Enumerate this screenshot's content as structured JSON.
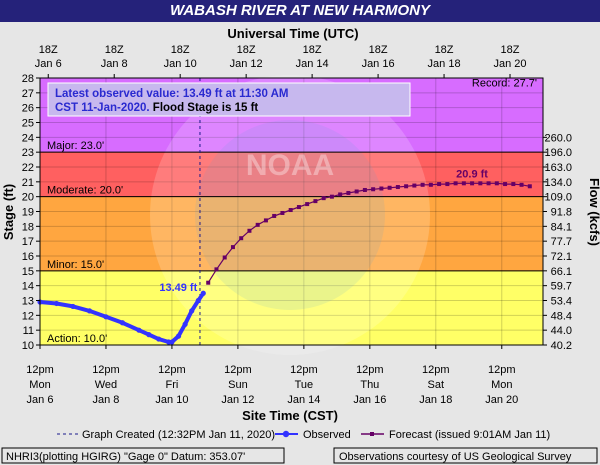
{
  "title": "WABASH RIVER AT NEW HARMONY",
  "top_axis_label": "Universal Time (UTC)",
  "bottom_axis_label": "Site Time (CST)",
  "left_axis_label": "Stage (ft)",
  "right_axis_label": "Flow (kcfs)",
  "top_ticks": [
    {
      "line1": "18Z",
      "line2": "Jan  6"
    },
    {
      "line1": "18Z",
      "line2": "Jan  8"
    },
    {
      "line1": "18Z",
      "line2": "Jan 10"
    },
    {
      "line1": "18Z",
      "line2": "Jan 12"
    },
    {
      "line1": "18Z",
      "line2": "Jan 14"
    },
    {
      "line1": "18Z",
      "line2": "Jan 16"
    },
    {
      "line1": "18Z",
      "line2": "Jan 18"
    },
    {
      "line1": "18Z",
      "line2": "Jan 20"
    }
  ],
  "bottom_ticks": [
    {
      "line1": "12pm",
      "line2": "Mon",
      "line3": "Jan 6"
    },
    {
      "line1": "12pm",
      "line2": "Wed",
      "line3": "Jan 8"
    },
    {
      "line1": "12pm",
      "line2": "Fri",
      "line3": "Jan 10"
    },
    {
      "line1": "12pm",
      "line2": "Sun",
      "line3": "Jan 12"
    },
    {
      "line1": "12pm",
      "line2": "Tue",
      "line3": "Jan 14"
    },
    {
      "line1": "12pm",
      "line2": "Thu",
      "line3": "Jan 16"
    },
    {
      "line1": "12pm",
      "line2": "Sat",
      "line3": "Jan 18"
    },
    {
      "line1": "12pm",
      "line2": "Mon",
      "line3": "Jan 20"
    }
  ],
  "stage_ticks": [
    "10",
    "11",
    "12",
    "13",
    "14",
    "15",
    "16",
    "17",
    "18",
    "19",
    "20",
    "21",
    "22",
    "23",
    "24",
    "25",
    "26",
    "27",
    "28"
  ],
  "flow_ticks": [
    {
      "stage": 10,
      "label": "40.2"
    },
    {
      "stage": 11,
      "label": "44.0"
    },
    {
      "stage": 12,
      "label": "48.4"
    },
    {
      "stage": 13,
      "label": "53.4"
    },
    {
      "stage": 14,
      "label": "59.7"
    },
    {
      "stage": 15,
      "label": "66.1"
    },
    {
      "stage": 16,
      "label": "72.1"
    },
    {
      "stage": 17,
      "label": "77.7"
    },
    {
      "stage": 18,
      "label": "84.1"
    },
    {
      "stage": 19,
      "label": "91.8"
    },
    {
      "stage": 20,
      "label": "109.0"
    },
    {
      "stage": 21,
      "label": "134.0"
    },
    {
      "stage": 22,
      "label": "163.0"
    },
    {
      "stage": 23,
      "label": "196.0"
    },
    {
      "stage": 24,
      "label": "260.0"
    }
  ],
  "flood_bands": [
    {
      "from": 10,
      "to": 15,
      "color": "#ffff66"
    },
    {
      "from": 15,
      "to": 20,
      "color": "#ffa640"
    },
    {
      "from": 20,
      "to": 23,
      "color": "#ff6060"
    },
    {
      "from": 23,
      "to": 28,
      "color": "#d76cff"
    }
  ],
  "stage_lines": [
    {
      "stage": 10,
      "label": "Action: 10.0'"
    },
    {
      "stage": 15,
      "label": "Minor: 15.0'"
    },
    {
      "stage": 20,
      "label": "Moderate: 20.0'"
    },
    {
      "stage": 23,
      "label": "Major: 23.0'"
    }
  ],
  "record_label": "Record: 27.7'",
  "latest_box": {
    "line1": "Latest observed value: 13.49 ft at 11:30 AM",
    "line2_a": "CST 11-Jan-2020.",
    "line2_b": " Flood Stage is 15 ft"
  },
  "observed_label": "13.49 ft",
  "forecast_peak_label": "20.9 ft",
  "legend": {
    "created": "Graph Created (12:32PM Jan 11, 2020)",
    "observed": "Observed",
    "forecast": "Forecast (issued 9:01AM Jan 11)"
  },
  "footer_left": "NHRI3(plotting HGIRG) \"Gage 0\" Datum: 353.07'",
  "footer_right": "Observations courtesy of US Geological Survey",
  "watermark": "NATIONAL OCEANIC AND ATMOSPHERIC ADMINISTRATION · U.S. DEPARTMENT OF COMMERCE · NOAA",
  "colors": {
    "observed": "#3333ff",
    "forecast": "#660066",
    "title_bg": "#25227a",
    "action": "#ffff66",
    "minor": "#ffa640",
    "moderate": "#ff6060",
    "major": "#d76cff"
  },
  "chart_data": {
    "type": "line",
    "title": "WABASH RIVER AT NEW HARMONY",
    "xlabel": "Site Time (CST)",
    "ylabel": "Stage (ft)",
    "y2label": "Flow (kcfs)",
    "x_unit": "days since Jan 6 12pm CST",
    "xlim": [
      0,
      15.25
    ],
    "ylim": [
      10,
      28
    ],
    "grid": true,
    "series": [
      {
        "name": "Observed",
        "x": [
          0,
          0.5,
          1,
          1.5,
          2,
          2.5,
          3,
          3.3,
          3.6,
          3.9,
          4.0,
          4.2,
          4.4,
          4.6,
          4.8,
          4.95
        ],
        "y": [
          12.9,
          12.8,
          12.6,
          12.3,
          11.9,
          11.5,
          11.0,
          10.7,
          10.4,
          10.2,
          10.2,
          10.6,
          11.4,
          12.3,
          13.0,
          13.49
        ]
      },
      {
        "name": "Forecast",
        "x": [
          5.1,
          5.35,
          5.6,
          5.85,
          6.1,
          6.35,
          6.6,
          6.85,
          7.1,
          7.35,
          7.6,
          7.85,
          8.1,
          8.35,
          8.6,
          8.85,
          9.1,
          9.35,
          9.6,
          9.85,
          10.1,
          10.35,
          10.6,
          10.85,
          11.1,
          11.35,
          11.6,
          11.85,
          12.1,
          12.35,
          12.6,
          12.85,
          13.1,
          13.35,
          13.6,
          13.85,
          14.1,
          14.35,
          14.6,
          14.85
        ],
        "y": [
          14.2,
          15.1,
          15.9,
          16.6,
          17.2,
          17.7,
          18.1,
          18.4,
          18.7,
          18.9,
          19.1,
          19.3,
          19.5,
          19.7,
          19.9,
          20.0,
          20.15,
          20.25,
          20.35,
          20.45,
          20.5,
          20.55,
          20.6,
          20.65,
          20.7,
          20.75,
          20.8,
          20.8,
          20.85,
          20.85,
          20.9,
          20.9,
          20.9,
          20.9,
          20.9,
          20.9,
          20.85,
          20.85,
          20.8,
          20.7
        ]
      }
    ],
    "thresholds": {
      "action": 10.0,
      "minor": 15.0,
      "moderate": 20.0,
      "major": 23.0,
      "record": 27.7
    },
    "latest_observed": {
      "stage": 13.49,
      "time": "11:30 AM CST 11-Jan-2020"
    },
    "created_at_x": 4.85
  }
}
